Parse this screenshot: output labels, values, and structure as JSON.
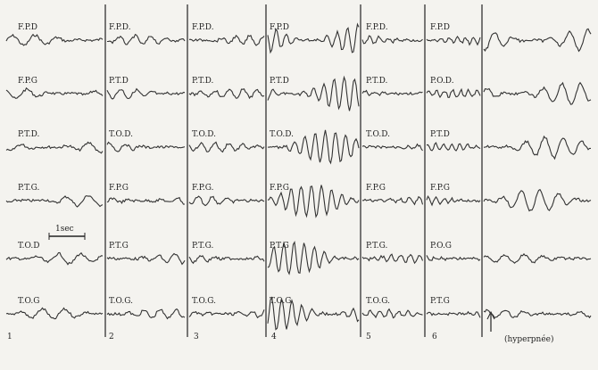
{
  "columns": [
    {
      "number": "1",
      "labels": [
        "F.P.D",
        "F.P.G",
        "P.T.D.",
        "P.T.G.",
        "T.O.D",
        "T.O.G"
      ]
    },
    {
      "number": "2",
      "labels": [
        "F.P.D.",
        "P.T.D",
        "T.O.D.",
        "F.P.G",
        "P.T.G",
        "T.O.G."
      ]
    },
    {
      "number": "3",
      "labels": [
        "F.P.D.",
        "P.T.D.",
        "T.O.D.",
        "F.P.G.",
        "P.T.G.",
        "T.O.G."
      ]
    },
    {
      "number": "4",
      "labels": [
        "F.P.D",
        "P.T.D",
        "T.O.D.",
        "F.P.G",
        "P.T.G",
        "T.O.G"
      ]
    },
    {
      "number": "5",
      "labels": [
        "F.P.D.",
        "P.T.D.",
        "T.O.D.",
        "F.P.G",
        "P.T.G.",
        "T.O.G."
      ]
    },
    {
      "number": "6",
      "labels": [
        "F.P.D",
        "P.O.D.",
        "P.T.D",
        "F.P.G",
        "P.O.G",
        "P.T.G"
      ]
    }
  ],
  "scale_label": "1sec",
  "note": "(hyperpnée)"
}
